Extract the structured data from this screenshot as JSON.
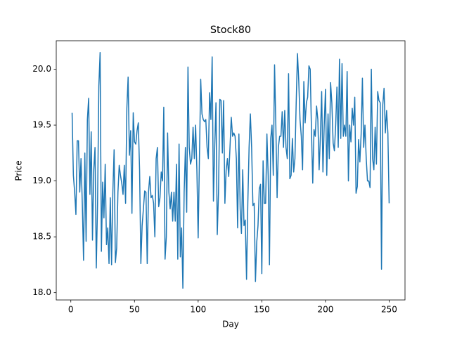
{
  "chart_data": {
    "type": "line",
    "title": "Stock80",
    "x_label": "Day",
    "y_label": "Price",
    "color": "#1f77b4",
    "x": [
      1,
      2,
      3,
      4,
      5,
      6,
      7,
      8,
      9,
      10,
      11,
      12,
      13,
      14,
      15,
      16,
      17,
      18,
      19,
      20,
      21,
      22,
      23,
      24,
      25,
      26,
      27,
      28,
      29,
      30,
      31,
      32,
      33,
      34,
      35,
      36,
      37,
      38,
      39,
      40,
      41,
      42,
      43,
      44,
      45,
      46,
      47,
      48,
      49,
      50,
      51,
      52,
      53,
      54,
      55,
      56,
      57,
      58,
      59,
      60,
      61,
      62,
      63,
      64,
      65,
      66,
      67,
      68,
      69,
      70,
      71,
      72,
      73,
      74,
      75,
      76,
      77,
      78,
      79,
      80,
      81,
      82,
      83,
      84,
      85,
      86,
      87,
      88,
      89,
      90,
      91,
      92,
      93,
      94,
      95,
      96,
      97,
      98,
      99,
      100,
      101,
      102,
      103,
      104,
      105,
      106,
      107,
      108,
      109,
      110,
      111,
      112,
      113,
      114,
      115,
      116,
      117,
      118,
      119,
      120,
      121,
      122,
      123,
      124,
      125,
      126,
      127,
      128,
      129,
      130,
      131,
      132,
      133,
      134,
      135,
      136,
      137,
      138,
      139,
      140,
      141,
      142,
      143,
      144,
      145,
      146,
      147,
      148,
      149,
      150,
      151,
      152,
      153,
      154,
      155,
      156,
      157,
      158,
      159,
      160,
      161,
      162,
      163,
      164,
      165,
      166,
      167,
      168,
      169,
      170,
      171,
      172,
      173,
      174,
      175,
      176,
      177,
      178,
      179,
      180,
      181,
      182,
      183,
      184,
      185,
      186,
      187,
      188,
      189,
      190,
      191,
      192,
      193,
      194,
      195,
      196,
      197,
      198,
      199,
      200,
      201,
      202,
      203,
      204,
      205,
      206,
      207,
      208,
      209,
      210,
      211,
      212,
      213,
      214,
      215,
      216,
      217,
      218,
      219,
      220,
      221,
      222,
      223,
      224,
      225,
      226,
      227,
      228,
      229,
      230,
      231,
      232,
      233,
      234,
      235,
      236,
      237,
      238,
      239,
      240,
      241,
      242,
      243,
      244,
      245,
      246,
      247,
      248,
      249,
      250
    ],
    "values": [
      19.61,
      19.05,
      18.9,
      18.7,
      19.36,
      19.36,
      18.9,
      19.2,
      18.8,
      18.29,
      19.25,
      18.46,
      19.55,
      19.74,
      18.88,
      19.44,
      18.47,
      19.1,
      19.3,
      18.22,
      18.8,
      19.85,
      20.15,
      18.37,
      18.99,
      18.67,
      19.15,
      18.43,
      18.58,
      18.26,
      18.85,
      18.25,
      18.9,
      19.28,
      18.27,
      18.4,
      18.9,
      19.14,
      19.05,
      18.98,
      18.88,
      19.14,
      18.8,
      19.65,
      19.93,
      19.23,
      19.45,
      18.71,
      19.61,
      19.35,
      19.33,
      19.45,
      19.52,
      19.1,
      18.26,
      18.6,
      18.75,
      18.91,
      18.9,
      18.26,
      18.9,
      19.04,
      18.85,
      18.87,
      18.8,
      18.5,
      19.2,
      19.3,
      18.77,
      18.85,
      19.08,
      19.0,
      19.66,
      18.3,
      18.5,
      19.43,
      18.9,
      18.75,
      18.9,
      18.64,
      18.9,
      18.64,
      19.15,
      18.3,
      19.33,
      18.32,
      18.58,
      18.04,
      18.9,
      19.3,
      18.72,
      20.02,
      19.3,
      19.15,
      19.2,
      19.48,
      19.2,
      19.5,
      19.1,
      18.49,
      19.2,
      19.91,
      19.6,
      19.55,
      19.53,
      19.55,
      19.3,
      19.2,
      19.79,
      19.55,
      20.11,
      18.82,
      19.3,
      19.7,
      18.52,
      18.9,
      19.73,
      19.72,
      19.25,
      19.72,
      18.8,
      19.1,
      19.2,
      19.04,
      19.3,
      19.57,
      19.4,
      19.43,
      19.4,
      19.2,
      18.58,
      19.42,
      18.75,
      18.53,
      19.1,
      18.6,
      18.65,
      18.12,
      18.8,
      19.3,
      19.6,
      19.3,
      18.78,
      18.8,
      18.1,
      18.45,
      18.6,
      18.93,
      18.97,
      18.17,
      19.18,
      18.8,
      18.8,
      19.42,
      19.05,
      18.25,
      19.38,
      19.5,
      19.05,
      20.04,
      19.5,
      18.85,
      19.3,
      19.4,
      19.4,
      19.62,
      19.3,
      19.63,
      19.3,
      19.2,
      19.96,
      19.02,
      19.05,
      19.38,
      19.08,
      19.2,
      19.7,
      20.14,
      19.9,
      19.55,
      19.4,
      19.1,
      19.89,
      19.52,
      19.7,
      19.75,
      20.03,
      20.0,
      19.45,
      18.98,
      19.46,
      19.4,
      19.67,
      19.55,
      19.1,
      19.4,
      19.8,
      19.08,
      19.5,
      19.82,
      19.05,
      19.6,
      19.2,
      19.88,
      19.7,
      19.34,
      19.27,
      19.5,
      19.84,
      19.3,
      20.09,
      19.38,
      20.05,
      19.4,
      19.5,
      19.4,
      19.98,
      19.0,
      19.5,
      19.35,
      19.65,
      19.5,
      19.75,
      18.89,
      18.95,
      19.37,
      19.17,
      19.42,
      19.92,
      19.3,
      19.5,
      19.2,
      19.0,
      19.0,
      18.94,
      20.0,
      19.2,
      19.1,
      19.48,
      19.15,
      19.8,
      19.72,
      19.7,
      18.21,
      19.68,
      19.83,
      19.43,
      19.63,
      19.43,
      18.8
    ],
    "xlim": [
      -11.45,
      262.45
    ],
    "xticks": [
      0,
      50,
      100,
      150,
      200,
      250
    ],
    "ylim": [
      17.935,
      20.255
    ],
    "yticks": [
      {
        "value": 18,
        "label": "18.0"
      },
      {
        "value": 18.5,
        "label": "18.5"
      },
      {
        "value": 19,
        "label": "19.0"
      },
      {
        "value": 19.5,
        "label": "19.5"
      },
      {
        "value": 20,
        "label": "20.0"
      }
    ]
  }
}
